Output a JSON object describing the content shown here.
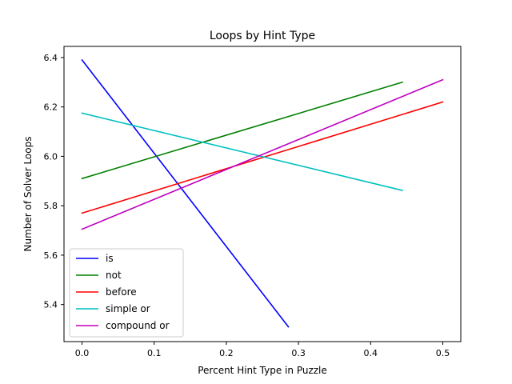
{
  "chart_data": {
    "type": "line",
    "title": "Loops by Hint Type",
    "xlabel": "Percent Hint Type in Puzzle",
    "ylabel": "Number of Solver Loops",
    "xlim": [
      -0.025,
      0.525
    ],
    "ylim": [
      5.25,
      6.445
    ],
    "x_ticks": [
      0.0,
      0.1,
      0.2,
      0.3,
      0.4,
      0.5
    ],
    "x_tick_labels": [
      "0.0",
      "0.1",
      "0.2",
      "0.3",
      "0.4",
      "0.5"
    ],
    "y_ticks": [
      5.4,
      5.6,
      5.8,
      6.0,
      6.2,
      6.4
    ],
    "y_tick_labels": [
      "5.4",
      "5.6",
      "5.8",
      "6.0",
      "6.2",
      "6.4"
    ],
    "grid": false,
    "legend": "lower-left",
    "series": [
      {
        "name": "is",
        "color": "#0000ff",
        "x": [
          0.0,
          0.286
        ],
        "y": [
          6.39,
          5.31
        ]
      },
      {
        "name": "not",
        "color": "#008000",
        "x": [
          0.0,
          0.444
        ],
        "y": [
          5.91,
          6.3
        ]
      },
      {
        "name": "before",
        "color": "#ff0000",
        "x": [
          0.0,
          0.5
        ],
        "y": [
          5.77,
          6.22
        ]
      },
      {
        "name": "simple or",
        "color": "#00bfbf",
        "x": [
          0.0,
          0.444
        ],
        "y": [
          6.175,
          5.862
        ]
      },
      {
        "name": "compound or",
        "color": "#bf00bf",
        "x": [
          0.0,
          0.5
        ],
        "y": [
          5.705,
          6.31
        ]
      }
    ]
  }
}
